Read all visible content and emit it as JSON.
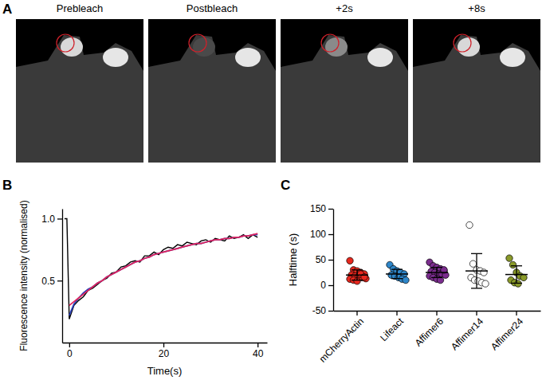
{
  "chart_data": [
    {
      "type": "image",
      "panel": "A",
      "titles": [
        "Prebleach",
        "Postbleach",
        "+2s",
        "+8s"
      ]
    },
    {
      "type": "line",
      "panel": "B",
      "x_label": "Time(s)",
      "y_label": "Fluorescence intensity (normalised)",
      "x": [
        -1,
        -0.5,
        0,
        1,
        2,
        3,
        4,
        5,
        6,
        7,
        8,
        9,
        10,
        11,
        12,
        13,
        14,
        15,
        16,
        17,
        18,
        19,
        20,
        21,
        22,
        23,
        24,
        25,
        26,
        27,
        28,
        29,
        30,
        31,
        32,
        33,
        34,
        35,
        36,
        37,
        38,
        39,
        40
      ],
      "series": [
        {
          "color": "#000000",
          "values": [
            1.0,
            1.0,
            0.19,
            0.3,
            0.34,
            0.37,
            0.42,
            0.44,
            0.47,
            0.5,
            0.52,
            0.56,
            0.57,
            0.61,
            0.62,
            0.65,
            0.66,
            0.65,
            0.7,
            0.7,
            0.73,
            0.71,
            0.75,
            0.77,
            0.76,
            0.79,
            0.78,
            0.81,
            0.8,
            0.79,
            0.82,
            0.83,
            0.81,
            0.84,
            0.83,
            0.82,
            0.86,
            0.84,
            0.85,
            0.87,
            0.84,
            0.87,
            0.85
          ]
        },
        {
          "color": "#2a3fb5",
          "values": [
            null,
            null,
            0.22,
            0.31,
            0.36,
            0.4,
            0.43,
            0.45,
            0.48,
            0.5,
            0.53,
            0.55,
            0.57,
            0.59,
            0.61,
            0.63,
            0.65,
            0.66,
            0.68,
            0.69,
            0.71,
            0.72,
            0.73,
            0.74,
            0.75,
            0.76,
            0.77,
            0.78,
            0.79,
            0.8,
            0.8,
            0.81,
            0.82,
            0.83,
            0.83,
            0.84,
            0.84,
            0.85,
            0.85,
            0.86,
            0.86,
            0.87,
            0.87
          ]
        },
        {
          "color": "#e0245e",
          "values": [
            null,
            null,
            0.3,
            0.33,
            0.36,
            0.39,
            0.42,
            0.45,
            0.48,
            0.5,
            0.53,
            0.55,
            0.57,
            0.59,
            0.61,
            0.63,
            0.65,
            0.66,
            0.68,
            0.69,
            0.71,
            0.72,
            0.73,
            0.74,
            0.75,
            0.76,
            0.77,
            0.78,
            0.79,
            0.8,
            0.8,
            0.81,
            0.82,
            0.83,
            0.83,
            0.84,
            0.84,
            0.85,
            0.85,
            0.86,
            0.86,
            0.87,
            0.88
          ]
        }
      ],
      "xlim": [
        -1.5,
        42
      ],
      "xticks": [
        0,
        20,
        40
      ],
      "ylim": [
        0,
        1.08
      ],
      "yticks": [
        {
          "value": 0.5,
          "label": "0.5"
        },
        {
          "value": 1,
          "label": "1.0"
        }
      ]
    },
    {
      "type": "dot_plot",
      "panel": "C",
      "y_label": "Halftime (s)",
      "categories": [
        "mCherryActin",
        "Lifeact",
        "Affimer6",
        "Affimer14",
        "Affimer24"
      ],
      "colors": [
        "#e8281e",
        "#2e86c9",
        "#7b2d8e",
        "#ffffff",
        "#8a9a2a"
      ],
      "points": [
        [
          48,
          30,
          28,
          25,
          22,
          20,
          18,
          17,
          15,
          13,
          12,
          10,
          8,
          22,
          16
        ],
        [
          40,
          32,
          28,
          25,
          22,
          20,
          18,
          15,
          12,
          10
        ],
        [
          45,
          38,
          35,
          32,
          28,
          27,
          25,
          22,
          22,
          20,
          18,
          15,
          12,
          10,
          30
        ],
        [
          118,
          42,
          30,
          28,
          25,
          15,
          10,
          8,
          5,
          3
        ],
        [
          53,
          40,
          25,
          18,
          15,
          10,
          5,
          3
        ]
      ],
      "means": [
        20,
        22,
        25,
        28,
        21
      ],
      "errors": [
        10,
        9,
        10,
        34,
        17
      ],
      "ylim": [
        -50,
        150
      ],
      "yticks": [
        -50,
        0,
        50,
        100,
        150
      ]
    }
  ]
}
